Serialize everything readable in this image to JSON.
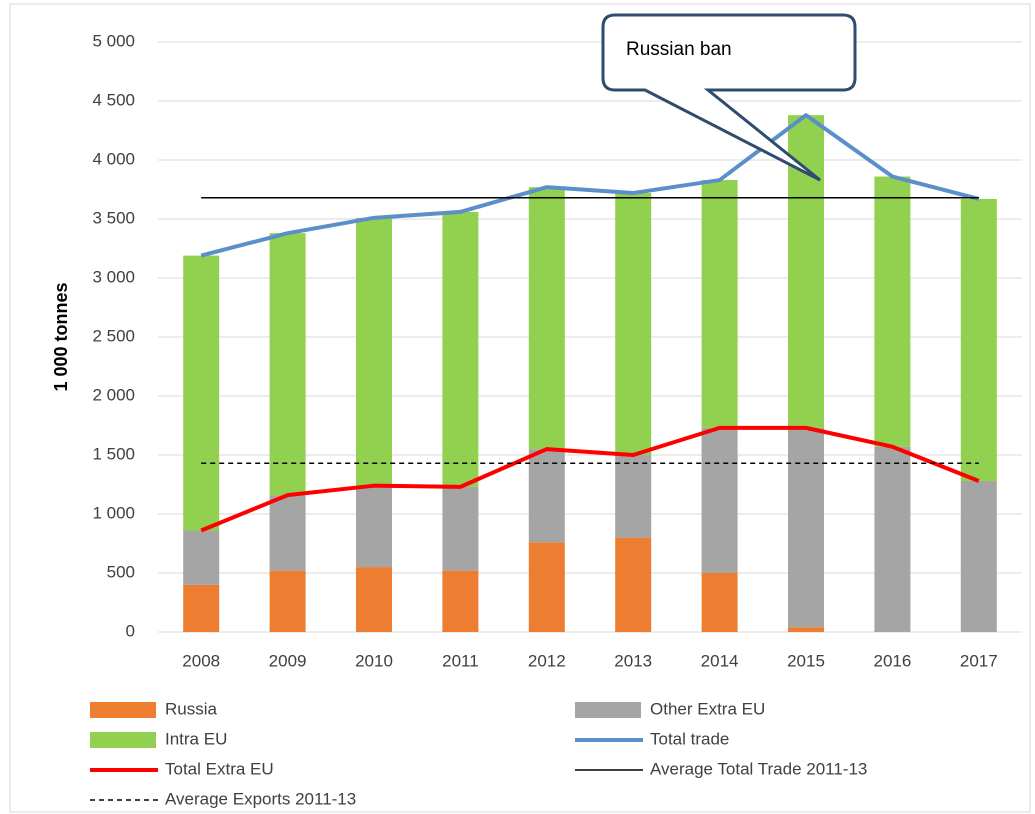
{
  "chart_data": {
    "type": "bar",
    "y_label": "1 000 tonnes",
    "annotation": "Russian ban",
    "categories": [
      "2008",
      "2009",
      "2010",
      "2011",
      "2012",
      "2013",
      "2014",
      "2015",
      "2016",
      "2017"
    ],
    "series": [
      {
        "name": "Russia",
        "kind": "bar",
        "color": "#ed7d31",
        "values": [
          400,
          520,
          550,
          520,
          760,
          800,
          500,
          40,
          0,
          0
        ]
      },
      {
        "name": "Other Extra EU",
        "kind": "bar",
        "color": "#a5a5a5",
        "values": [
          460,
          640,
          690,
          710,
          790,
          700,
          1230,
          1690,
          1570,
          1280
        ]
      },
      {
        "name": "Intra EU",
        "kind": "bar",
        "color": "#92d050",
        "values": [
          2330,
          2220,
          2270,
          2330,
          2220,
          2220,
          2100,
          2650,
          2290,
          2390
        ]
      },
      {
        "name": "Total trade",
        "kind": "line",
        "color": "#5b8fc9",
        "values": [
          3190,
          3380,
          3510,
          3560,
          3770,
          3720,
          3830,
          4380,
          3860,
          3670
        ]
      },
      {
        "name": "Total Extra EU",
        "kind": "line",
        "color": "#ff0000",
        "values": [
          860,
          1160,
          1240,
          1230,
          1550,
          1500,
          1730,
          1730,
          1570,
          1280
        ]
      },
      {
        "name": "Average Total Trade 2011-13",
        "kind": "hline",
        "color": "#000000",
        "dashed": false,
        "value": 3680
      },
      {
        "name": "Average Exports 2011-13",
        "kind": "hline",
        "color": "#000000",
        "dashed": true,
        "value": 1430
      }
    ],
    "ylim": [
      0,
      5000
    ],
    "yticks": [
      0,
      500,
      {
        "value": 1000,
        "label": "1 000"
      },
      {
        "value": 1500,
        "label": "1 500"
      },
      {
        "value": 2000,
        "label": "2 000"
      },
      {
        "value": 2500,
        "label": "2 500"
      },
      {
        "value": 3000,
        "label": "3 000"
      },
      {
        "value": 3500,
        "label": "3 500"
      },
      {
        "value": 4000,
        "label": "4 000"
      },
      {
        "value": 4500,
        "label": "4 500"
      },
      {
        "value": 5000,
        "label": "5 000"
      }
    ],
    "grid": true
  }
}
